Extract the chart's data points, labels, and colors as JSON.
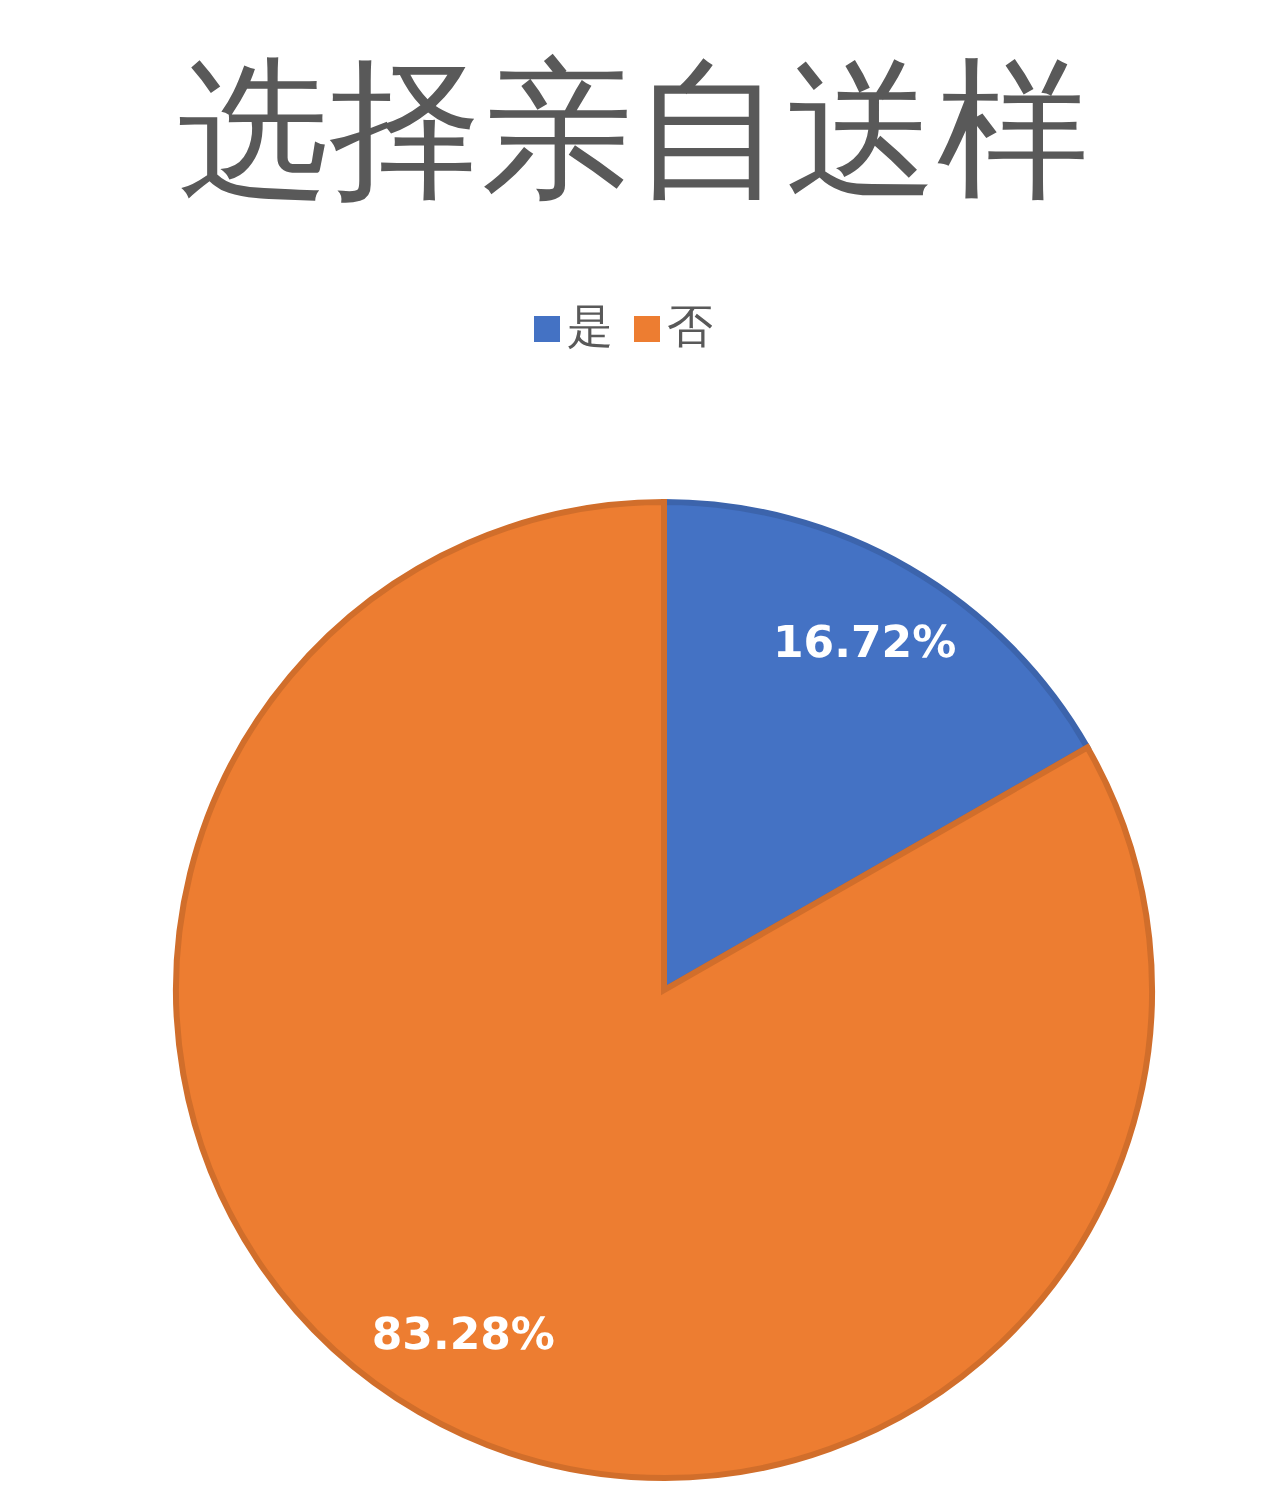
{
  "chart_data": {
    "type": "pie",
    "title": "选择亲自送样",
    "categories": [
      "是",
      "否"
    ],
    "values": [
      16.72,
      83.28
    ],
    "colors": [
      "#4472c4",
      "#ed7d31"
    ],
    "value_labels": [
      "16.72%",
      "83.28%"
    ],
    "legend": "top"
  }
}
